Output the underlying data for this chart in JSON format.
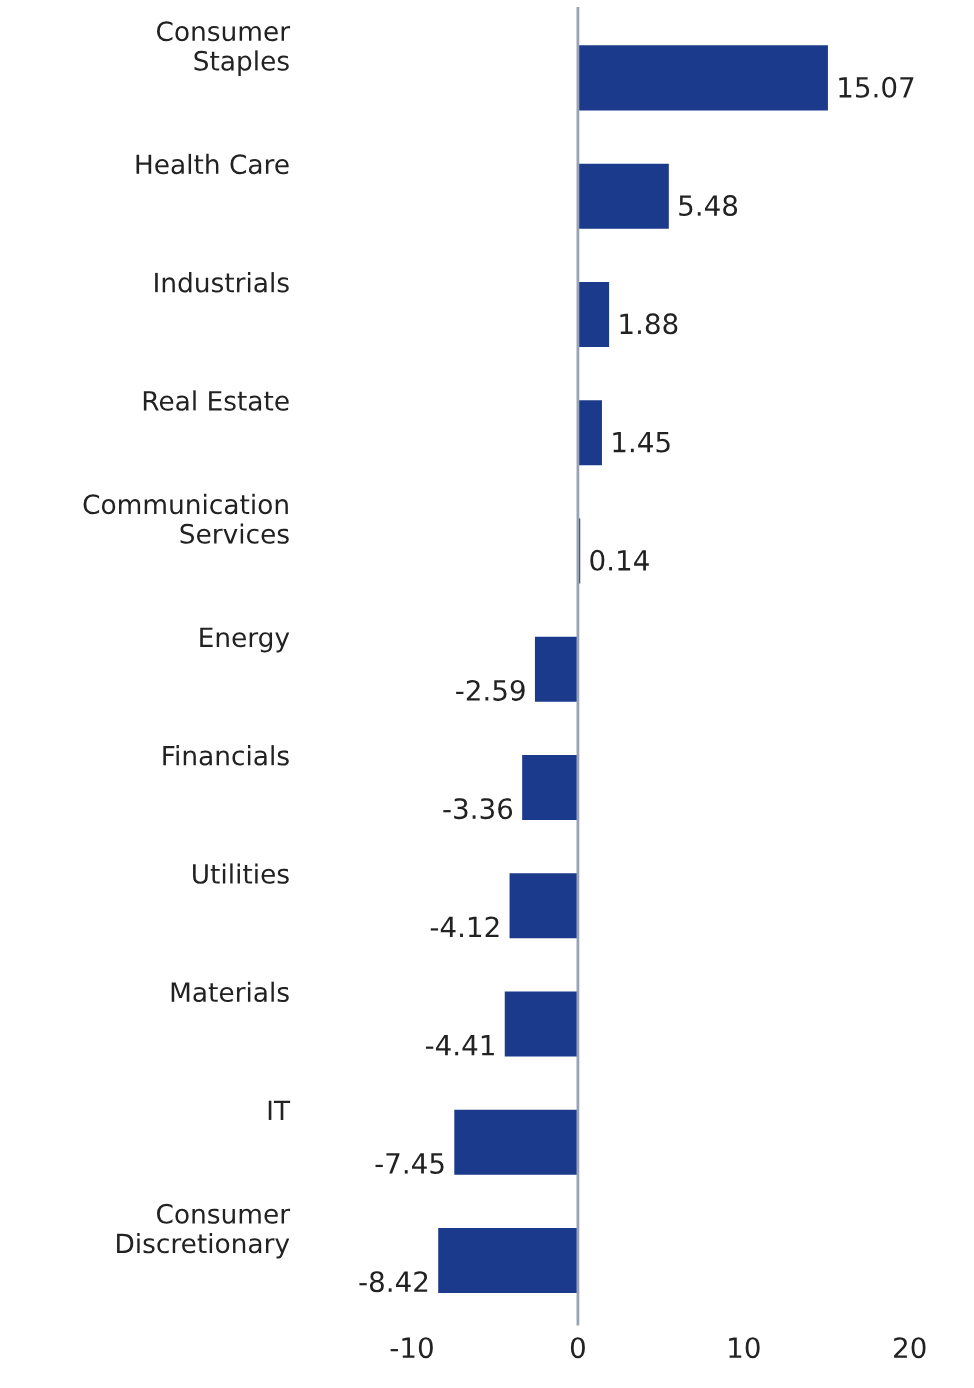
{
  "chart_data": {
    "type": "bar",
    "orientation": "horizontal",
    "categories": [
      "Consumer\nStaples",
      "Health Care",
      "Industrials",
      "Real Estate",
      "Communication\nServices",
      "Energy",
      "Financials",
      "Utilities",
      "Materials",
      "IT",
      "Consumer\nDiscretionary"
    ],
    "values": [
      15.07,
      5.48,
      1.88,
      1.45,
      0.14,
      -2.59,
      -3.36,
      -4.12,
      -4.41,
      -7.45,
      -8.42
    ],
    "color": "#1b3a8c",
    "xlim": [
      -10,
      20
    ],
    "xticks": [
      -10,
      0,
      10,
      20
    ],
    "data_labels": true,
    "ref_lines": [
      {
        "axis": "x",
        "value": 0,
        "color": "#9aa3b5"
      }
    ]
  }
}
